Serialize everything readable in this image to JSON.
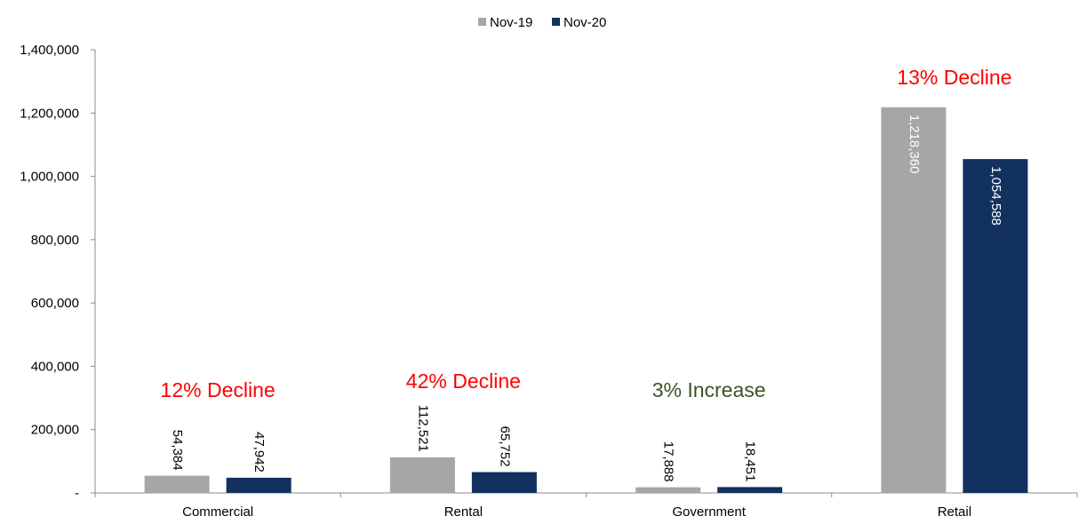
{
  "chart_data": {
    "type": "bar",
    "categories": [
      "Commercial",
      "Rental",
      "Government",
      "Retail"
    ],
    "series": [
      {
        "name": "Nov-19",
        "color": "#A6A6A6",
        "values": [
          54384,
          112521,
          17888,
          1218360
        ],
        "labels": [
          "54,384",
          "112,521",
          "17,888",
          "1,218,360"
        ]
      },
      {
        "name": "Nov-20",
        "color": "#12315F",
        "values": [
          47942,
          65752,
          18451,
          1054588
        ],
        "labels": [
          "47,942",
          "65,752",
          "18,451",
          "1,054,588"
        ]
      }
    ],
    "ylim": [
      0,
      1400000
    ],
    "yticks": [
      0,
      200000,
      400000,
      600000,
      800000,
      1000000,
      1200000,
      1400000
    ],
    "ytick_labels": [
      "-",
      "200,000",
      "400,000",
      "600,000",
      "800,000",
      "1,000,000",
      "1,200,000",
      "1,400,000"
    ],
    "legend_position": "top-center",
    "grid": false,
    "annotations": [
      {
        "category": "Commercial",
        "text": "12% Decline",
        "color": "#FF0000"
      },
      {
        "category": "Rental",
        "text": "42% Decline",
        "color": "#FF0000"
      },
      {
        "category": "Government",
        "text": "3% Increase",
        "color": "#375623"
      },
      {
        "category": "Retail",
        "text": "13% Decline",
        "color": "#FF0000"
      }
    ]
  }
}
